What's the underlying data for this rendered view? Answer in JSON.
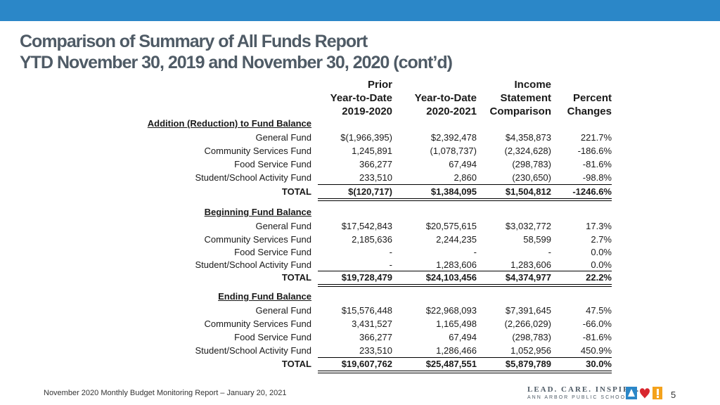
{
  "header": {
    "title_line1": "Comparison of Summary of All Funds Report",
    "title_line2": "YTD November 30, 2019 and November 30, 2020 (cont’d)"
  },
  "columns": [
    {
      "line1": "Prior",
      "line2": "Year-to-Date",
      "line3": "2019-2020"
    },
    {
      "line1": "",
      "line2": "Year-to-Date",
      "line3": "2020-2021"
    },
    {
      "line1": "Income",
      "line2": "Statement",
      "line3": "Comparison"
    },
    {
      "line1": "",
      "line2": "Percent",
      "line3": "Changes"
    }
  ],
  "sections": [
    {
      "heading": "Addition (Reduction) to Fund Balance",
      "rows": [
        {
          "label": "General Fund",
          "prior": "$(1,966,395)",
          "current": "$2,392,478",
          "income": "$4,358,873",
          "pct": "221.7%"
        },
        {
          "label": "Community Services Fund",
          "prior": "1,245,891",
          "current": "(1,078,737)",
          "income": "(2,324,628)",
          "pct": "-186.6%"
        },
        {
          "label": "Food Service Fund",
          "prior": "366,277",
          "current": "67,494",
          "income": "(298,783)",
          "pct": "-81.6%"
        },
        {
          "label": "Student/School Activity Fund",
          "prior": "233,510",
          "current": "2,860",
          "income": "(230,650)",
          "pct": "-98.8%"
        }
      ],
      "total": {
        "label": "TOTAL",
        "prior": "$(120,717)",
        "current": "$1,384,095",
        "income": "$1,504,812",
        "pct": "-1246.6%"
      }
    },
    {
      "heading": "Beginning Fund Balance",
      "rows": [
        {
          "label": "General Fund",
          "prior": "$17,542,843",
          "current": "$20,575,615",
          "income": "$3,032,772",
          "pct": "17.3%"
        },
        {
          "label": "Community Services Fund",
          "prior": "2,185,636",
          "current": "2,244,235",
          "income": "58,599",
          "pct": "2.7%"
        },
        {
          "label": "Food Service Fund",
          "prior": "-",
          "current": "-",
          "income": "-",
          "pct": "0.0%"
        },
        {
          "label": "Student/School Activity Fund",
          "prior": "-",
          "current": "1,283,606",
          "income": "1,283,606",
          "pct": "0.0%"
        }
      ],
      "total": {
        "label": "TOTAL",
        "prior": "$19,728,479",
        "current": "$24,103,456",
        "income": "$4,374,977",
        "pct": "22.2%"
      }
    },
    {
      "heading": "Ending Fund Balance",
      "rows": [
        {
          "label": "General Fund",
          "prior": "$15,576,448",
          "current": "$22,968,093",
          "income": "$7,391,645",
          "pct": "47.5%"
        },
        {
          "label": "Community Services Fund",
          "prior": "3,431,527",
          "current": "1,165,498",
          "income": "(2,266,029)",
          "pct": "-66.0%"
        },
        {
          "label": "Food Service Fund",
          "prior": "366,277",
          "current": "67,494",
          "income": "(298,783)",
          "pct": "-81.6%"
        },
        {
          "label": "Student/School Activity Fund",
          "prior": "233,510",
          "current": "1,286,466",
          "income": "1,052,956",
          "pct": "450.9%"
        }
      ],
      "total": {
        "label": "TOTAL",
        "prior": "$19,607,762",
        "current": "$25,487,551",
        "income": "$5,879,789",
        "pct": "30.0%"
      }
    }
  ],
  "footer": {
    "text": "November 2020 Monthly Budget Monitoring Report – January 20, 2021",
    "logo_line1": "LEAD. CARE. INSPIRE.",
    "logo_line2": "ANN ARBOR PUBLIC SCHOOLS",
    "page_number": "5"
  },
  "colors": {
    "top_bar": "#2b87c8",
    "title": "#4f5b66"
  }
}
